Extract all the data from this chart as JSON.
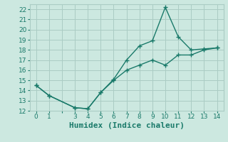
{
  "xlabel": "Humidex (Indice chaleur)",
  "background_color": "#cce8e0",
  "grid_color": "#aaccc4",
  "line_color": "#1a7a6a",
  "line1_x": [
    0,
    1,
    3,
    4,
    5,
    6,
    7,
    8,
    9,
    10,
    11,
    12,
    13,
    14
  ],
  "line1_y": [
    14.5,
    13.5,
    12.3,
    12.2,
    13.8,
    15.1,
    17.0,
    18.4,
    18.9,
    22.2,
    19.3,
    18.0,
    18.1,
    18.2
  ],
  "line2_x": [
    0,
    1,
    3,
    4,
    5,
    6,
    7,
    8,
    9,
    10,
    11,
    12,
    13,
    14
  ],
  "line2_y": [
    14.5,
    13.5,
    12.3,
    12.2,
    13.8,
    15.0,
    16.0,
    16.5,
    17.0,
    16.5,
    17.5,
    17.5,
    18.0,
    18.2
  ],
  "xlim": [
    -0.5,
    14.5
  ],
  "ylim": [
    12,
    22.5
  ],
  "xticks": [
    0,
    1,
    2,
    3,
    4,
    5,
    6,
    7,
    8,
    9,
    10,
    11,
    12,
    13,
    14
  ],
  "xticklabels": [
    "0",
    "1",
    "",
    "3",
    "4",
    "5",
    "6",
    "7",
    "8",
    "9",
    "10",
    "11",
    "12",
    "13",
    "14"
  ],
  "yticks": [
    12,
    13,
    14,
    15,
    16,
    17,
    18,
    19,
    20,
    21,
    22
  ],
  "marker": "+",
  "markersize": 5,
  "linewidth": 1.0,
  "xlabel_fontsize": 8,
  "tick_fontsize": 6.5
}
